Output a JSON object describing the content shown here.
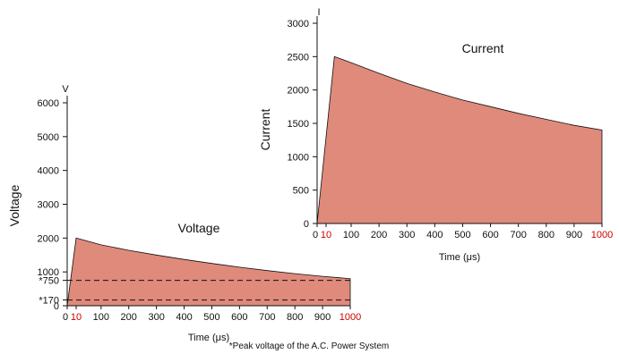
{
  "chart_data": [
    {
      "type": "area",
      "title": "Voltage",
      "ylabel": "Voltage",
      "y_unit": "V",
      "xlabel": "Time (μs)",
      "xlim": [
        0,
        1000
      ],
      "ylim": [
        0,
        6000
      ],
      "x_ticks": [
        "0",
        "10",
        "100",
        "200",
        "300",
        "400",
        "500",
        "600",
        "700",
        "800",
        "900",
        "1000"
      ],
      "x_tick_values": [
        0,
        10,
        100,
        200,
        300,
        400,
        500,
        600,
        700,
        800,
        900,
        1000
      ],
      "highlighted_x_ticks": [
        "10",
        "1000"
      ],
      "y_ticks": [
        "0",
        "*170",
        "*750",
        "1000",
        "2000",
        "3000",
        "4000",
        "5000",
        "6000"
      ],
      "y_tick_values": [
        0,
        170,
        750,
        1000,
        2000,
        3000,
        4000,
        5000,
        6000
      ],
      "reference_lines": [
        170,
        750
      ],
      "series": [
        {
          "x": [
            0,
            10,
            100,
            200,
            300,
            400,
            500,
            600,
            700,
            800,
            900,
            1000
          ],
          "y": [
            0,
            2000,
            1800,
            1640,
            1500,
            1370,
            1250,
            1140,
            1040,
            950,
            870,
            800
          ]
        }
      ],
      "grid": false
    },
    {
      "type": "area",
      "title": "Current",
      "ylabel": "Current",
      "y_unit": "I",
      "xlabel": "Time (μs)",
      "xlim": [
        0,
        1000
      ],
      "ylim": [
        0,
        3000
      ],
      "x_ticks": [
        "0",
        "10",
        "100",
        "200",
        "300",
        "400",
        "500",
        "600",
        "700",
        "800",
        "900",
        "1000"
      ],
      "x_tick_values": [
        0,
        10,
        100,
        200,
        300,
        400,
        500,
        600,
        700,
        800,
        900,
        1000
      ],
      "highlighted_x_ticks": [
        "10",
        "1000"
      ],
      "y_ticks": [
        "0",
        "500",
        "1000",
        "1500",
        "2000",
        "2500",
        "3000"
      ],
      "y_tick_values": [
        0,
        500,
        1000,
        1500,
        2000,
        2500,
        3000
      ],
      "series": [
        {
          "x": [
            0,
            40,
            100,
            200,
            300,
            400,
            500,
            600,
            700,
            800,
            900,
            1000
          ],
          "y": [
            0,
            2500,
            2410,
            2250,
            2100,
            1970,
            1850,
            1750,
            1650,
            1560,
            1470,
            1400
          ]
        }
      ],
      "grid": false
    }
  ],
  "footnote": "*Peak voltage of the A.C. Power System",
  "colors": {
    "fill": "#df8a7b",
    "highlight": "#cc0000",
    "axis": "#111111"
  }
}
